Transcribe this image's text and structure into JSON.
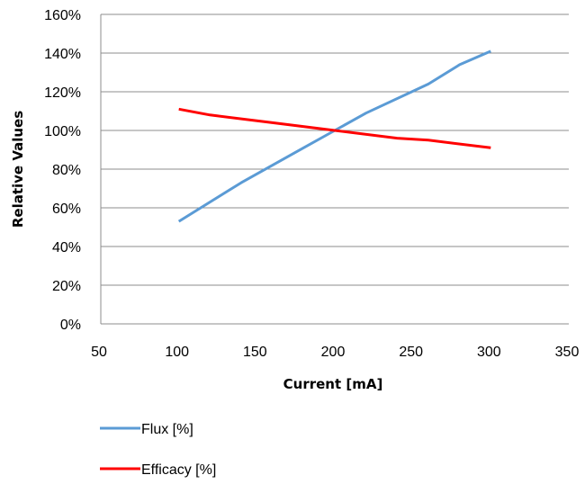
{
  "chart_data": {
    "type": "line",
    "xlabel": "Current [mA]",
    "ylabel": "Relative Values",
    "xlim": [
      50,
      350
    ],
    "ylim": [
      0,
      160
    ],
    "x_ticks": [
      50,
      100,
      150,
      200,
      250,
      300,
      350
    ],
    "x_tick_labels": [
      "50",
      "100",
      "150",
      "200",
      "250",
      "300",
      "350"
    ],
    "y_ticks": [
      0,
      20,
      40,
      60,
      80,
      100,
      120,
      140,
      160
    ],
    "y_tick_labels": [
      "0%",
      "20%",
      "40%",
      "60%",
      "80%",
      "100%",
      "120%",
      "140%",
      "160%"
    ],
    "grid": "horizontal",
    "legend_position": "bottom-left",
    "series": [
      {
        "name": "Flux [%]",
        "color": "#5b9bd5",
        "x": [
          100,
          140,
          180,
          200,
          220,
          260,
          280,
          300
        ],
        "y": [
          53,
          73,
          91,
          100,
          109,
          124,
          134,
          141
        ]
      },
      {
        "name": "Efficacy [%]",
        "color": "#ff0000",
        "x": [
          100,
          120,
          160,
          200,
          240,
          260,
          300
        ],
        "y": [
          111,
          108,
          104,
          100,
          96,
          95,
          91
        ]
      }
    ]
  }
}
